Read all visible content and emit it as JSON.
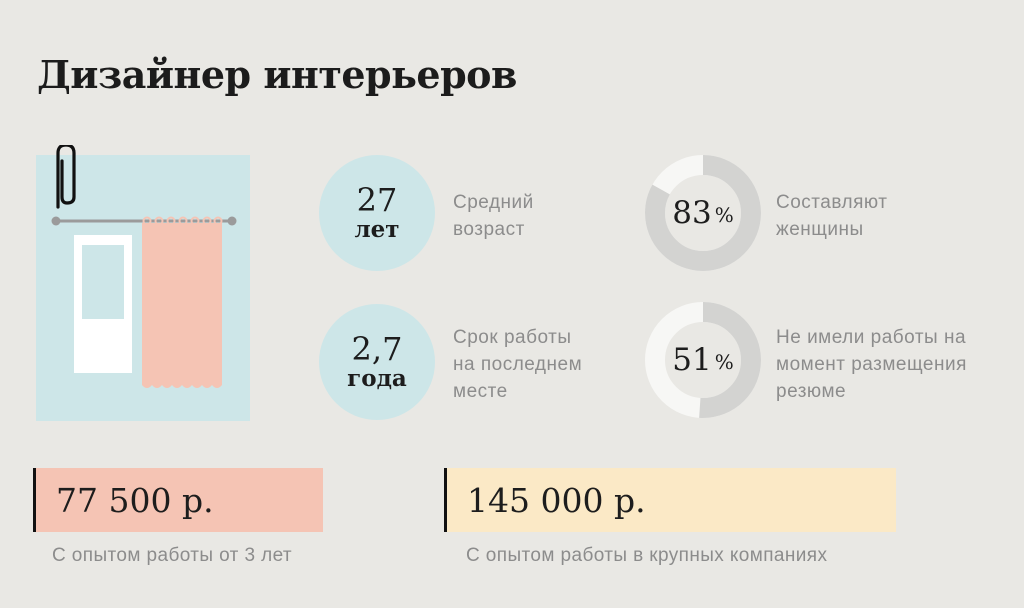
{
  "title": "Дизайнер интерьеров",
  "stats": {
    "age": {
      "number": "27",
      "unit": "лет",
      "label_lines": [
        "Средний",
        "возраст"
      ]
    },
    "tenure": {
      "number": "2,7",
      "unit": "года",
      "label_lines": [
        "Срок работы",
        "на последнем",
        "месте"
      ]
    },
    "women": {
      "value": 83,
      "text": "83",
      "percent_sign": "%",
      "label_lines": [
        "Составляют",
        "женщины"
      ]
    },
    "unemployed": {
      "value": 51,
      "text": "51",
      "percent_sign": "%",
      "label_lines": [
        "Не имели работы на",
        "момент размещения",
        "резюме"
      ]
    }
  },
  "salaries": [
    {
      "amount": "77 500 р.",
      "label": "С опытом работы от 3 лет",
      "color": "#f5c4b4"
    },
    {
      "amount": "145 000 р.",
      "label": "С опытом работы в крупных компаниях",
      "color": "#fbe9c6"
    }
  ],
  "colors": {
    "background": "#e9e8e4",
    "teal": "#cde6e8",
    "curtain": "#f5c4b4",
    "donut_fill": "#d3d3d1",
    "donut_track": "#f7f7f5"
  }
}
